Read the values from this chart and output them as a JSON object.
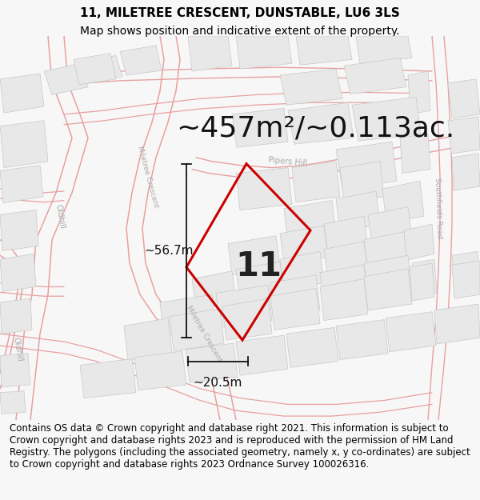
{
  "title_line1": "11, MILETREE CRESCENT, DUNSTABLE, LU6 3LS",
  "title_line2": "Map shows position and indicative extent of the property.",
  "area_text": "~457m²/~0.113ac.",
  "width_text": "~20.5m",
  "height_text": "~56.7m",
  "number_text": "11",
  "footer_text": "Contains OS data © Crown copyright and database right 2021. This information is subject to Crown copyright and database rights 2023 and is reproduced with the permission of HM Land Registry. The polygons (including the associated geometry, namely x, y co-ordinates) are subject to Crown copyright and database rights 2023 Ordnance Survey 100026316.",
  "bg_color": "#f7f7f7",
  "map_bg": "#ffffff",
  "road_color": "#e8a0a0",
  "road_fill": "#f5e8e8",
  "building_fill": "#e8e8e8",
  "building_edge": "#c8c8c8",
  "highlight_color": "#cc0000",
  "title_fontsize": 11,
  "subtitle_fontsize": 10,
  "area_fontsize": 26,
  "measurement_fontsize": 11,
  "number_fontsize": 30,
  "footer_fontsize": 8.5,
  "road_label_color": "#aaaaaa",
  "road_label_size": 7
}
